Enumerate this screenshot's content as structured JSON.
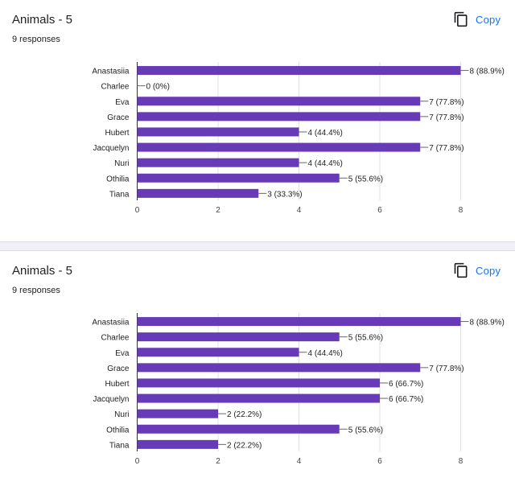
{
  "cards": [
    {
      "title": "Animals - 5",
      "responses": "9 responses",
      "copy_label": "Copy",
      "copy_icon": "copy-icon",
      "chart_data": {
        "type": "bar",
        "orientation": "horizontal",
        "categories": [
          "Anastasiia",
          "Charlee",
          "Eva",
          "Grace",
          "Hubert",
          "Jacquelyn",
          "Nuri",
          "Othilia",
          "Tiana"
        ],
        "values": [
          8,
          0,
          7,
          7,
          4,
          7,
          4,
          5,
          3
        ],
        "labels": [
          "8 (88.9%)",
          "0 (0%)",
          "7 (77.8%)",
          "7 (77.8%)",
          "4 (44.4%)",
          "7 (77.8%)",
          "4 (44.4%)",
          "5 (55.6%)",
          "3 (33.3%)"
        ],
        "xticks": [
          "0",
          "2",
          "4",
          "6",
          "8"
        ],
        "xlim": [
          0,
          8
        ],
        "color": "#673ab7",
        "grid": true
      }
    },
    {
      "title": "Animals - 5",
      "responses": "9 responses",
      "copy_label": "Copy",
      "copy_icon": "copy-icon",
      "chart_data": {
        "type": "bar",
        "orientation": "horizontal",
        "categories": [
          "Anastasiia",
          "Charlee",
          "Eva",
          "Grace",
          "Hubert",
          "Jacquelyn",
          "Nuri",
          "Othilia",
          "Tiana"
        ],
        "values": [
          8,
          5,
          4,
          7,
          6,
          6,
          2,
          5,
          2
        ],
        "labels": [
          "8 (88.9%)",
          "5 (55.6%)",
          "4 (44.4%)",
          "7 (77.8%)",
          "6 (66.7%)",
          "6 (66.7%)",
          "2 (22.2%)",
          "5 (55.6%)",
          "2 (22.2%)"
        ],
        "xticks": [
          "0",
          "2",
          "4",
          "6",
          "8"
        ],
        "xlim": [
          0,
          8
        ],
        "color": "#673ab7",
        "grid": true
      }
    }
  ]
}
